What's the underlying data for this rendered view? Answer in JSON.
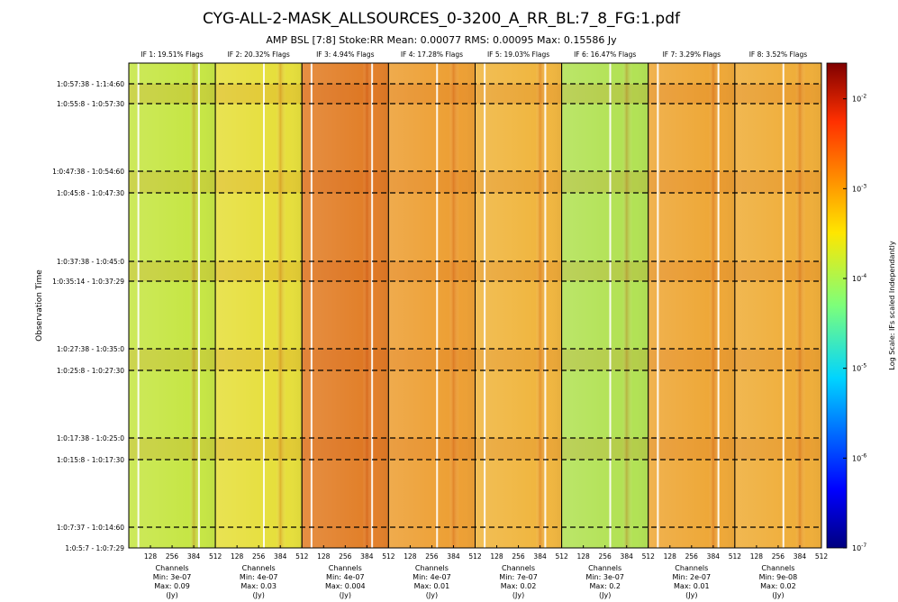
{
  "figure": {
    "title": "CYG-ALL-2-MASK_ALLSOURCES_0-3200_A_RR_BL:7_8_FG:1.pdf",
    "subtitle": "AMP BSL [7:8] Stoke:RR Mean: 0.00077 RMS: 0.00095 Max: 0.15586 Jy",
    "y_label": "Observation Time",
    "time_labels": [
      "1:0:57:38 - 1:1:4:60",
      "1:0:55:8 - 1:0:57:30",
      "1:0:47:38 - 1:0:54:60",
      "1:0:45:8 - 1:0:47:30",
      "1:0:37:38 - 1:0:45:0",
      "1:0:35:14 - 1:0:37:29",
      "1:0:27:38 - 1:0:35:0",
      "1:0:25:8 - 1:0:27:30",
      "1:0:17:38 - 1:0:25:0",
      "1:0:15:8 - 1:0:17:30",
      "1:0:7:37 - 1:0:14:60",
      "1:0:5:7 - 1:0:7:29"
    ],
    "channel_ticks": [
      128,
      256,
      384,
      512
    ],
    "channel_range": [
      0,
      512
    ],
    "panels": [
      {
        "title": "IF 1: 19.51% Flags",
        "footer": [
          "Channels",
          "Min: 3e-07",
          "Max: 0.09",
          "(Jy)"
        ],
        "color": "#c6e645"
      },
      {
        "title": "IF 2: 20.32% Flags",
        "footer": [
          "Channels",
          "Min: 4e-07",
          "Max: 0.03",
          "(Jy)"
        ],
        "color": "#e6df3c"
      },
      {
        "title": "IF 3: 4.94% Flags",
        "footer": [
          "Channels",
          "Min: 4e-07",
          "Max: 0.004",
          "(Jy)"
        ],
        "color": "#e2802a"
      },
      {
        "title": "IF 4: 17.28% Flags",
        "footer": [
          "Channels",
          "Min: 4e-07",
          "Max: 0.01",
          "(Jy)"
        ],
        "color": "#eda035"
      },
      {
        "title": "IF 5: 19.03% Flags",
        "footer": [
          "Channels",
          "Min: 7e-07",
          "Max: 0.02",
          "(Jy)"
        ],
        "color": "#f0b640"
      },
      {
        "title": "IF 6: 16.47% Flags",
        "footer": [
          "Channels",
          "Min: 3e-07",
          "Max: 0.2",
          "(Jy)"
        ],
        "color": "#b2e255"
      },
      {
        "title": "IF 7: 3.29% Flags",
        "footer": [
          "Channels",
          "Min: 2e-07",
          "Max: 0.01",
          "(Jy)"
        ],
        "color": "#eea838"
      },
      {
        "title": "IF 8: 3.52% Flags",
        "footer": [
          "Channels",
          "Min: 9e-08",
          "Max: 0.02",
          "(Jy)"
        ],
        "color": "#efae3a"
      }
    ],
    "colorbar": {
      "label": "Log Scale: IFs scaled Independantly",
      "lim": [
        1e-07,
        0.025
      ],
      "log": true,
      "ticks": [
        {
          "value": 0.01,
          "base": "10",
          "exp": "-2"
        },
        {
          "value": 0.001,
          "base": "10",
          "exp": "-3"
        },
        {
          "value": 0.0001,
          "base": "10",
          "exp": "-4"
        },
        {
          "value": 1e-05,
          "base": "10",
          "exp": "-5"
        },
        {
          "value": 1e-06,
          "base": "10",
          "exp": "-6"
        },
        {
          "value": 1e-07,
          "base": "10",
          "exp": "-7"
        }
      ]
    }
  }
}
